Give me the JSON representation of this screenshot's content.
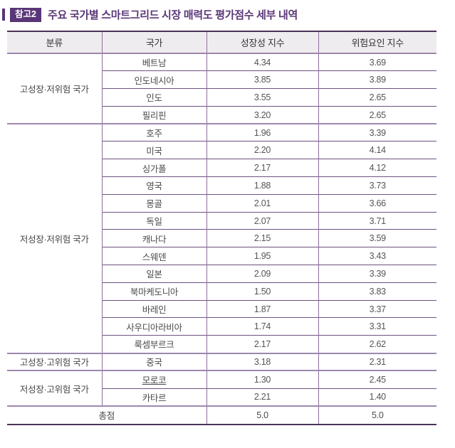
{
  "page": {
    "badge": "참고2",
    "title": "주요 국가별 스마트그리드 시장 매력도 평가점수 세부 내역"
  },
  "table": {
    "columns": [
      "분류",
      "국가",
      "성장성 지수",
      "위험요인 지수"
    ],
    "groups": [
      {
        "category": "고성장·저위험 국가",
        "rows": [
          {
            "country": "베트남",
            "growth": "4.34",
            "risk": "3.69"
          },
          {
            "country": "인도네시아",
            "growth": "3.85",
            "risk": "3.89"
          },
          {
            "country": "인도",
            "growth": "3.55",
            "risk": "2.65"
          },
          {
            "country": "필리핀",
            "growth": "3.20",
            "risk": "2.65"
          }
        ]
      },
      {
        "category": "저성장·저위험 국가",
        "rows": [
          {
            "country": "호주",
            "growth": "1.96",
            "risk": "3.39"
          },
          {
            "country": "미국",
            "growth": "2.20",
            "risk": "4.14"
          },
          {
            "country": "싱가폴",
            "growth": "2.17",
            "risk": "4.12"
          },
          {
            "country": "영국",
            "growth": "1.88",
            "risk": "3.73"
          },
          {
            "country": "몽골",
            "growth": "2.01",
            "risk": "3.66"
          },
          {
            "country": "독일",
            "growth": "2.07",
            "risk": "3.71"
          },
          {
            "country": "캐나다",
            "growth": "2.15",
            "risk": "3.59"
          },
          {
            "country": "스웨덴",
            "growth": "1.95",
            "risk": "3.43"
          },
          {
            "country": "일본",
            "growth": "2.09",
            "risk": "3.39"
          },
          {
            "country": "북마케도니아",
            "growth": "1.50",
            "risk": "3.83"
          },
          {
            "country": "바레인",
            "growth": "1.87",
            "risk": "3.37"
          },
          {
            "country": "사우디아라비아",
            "growth": "1.74",
            "risk": "3.31"
          },
          {
            "country": "룩셈부르크",
            "growth": "2.17",
            "risk": "2.62"
          }
        ]
      },
      {
        "category": "고성장·고위험 국가",
        "rows": [
          {
            "country": "중국",
            "growth": "3.18",
            "risk": "2.31"
          }
        ]
      },
      {
        "category": "저성장·고위험 국가",
        "rows": [
          {
            "country": "모로코",
            "growth": "1.30",
            "risk": "2.45",
            "underline": true
          },
          {
            "country": "카타르",
            "growth": "2.21",
            "risk": "1.40"
          }
        ]
      }
    ],
    "total": {
      "label": "총점",
      "growth": "5.0",
      "risk": "5.0"
    }
  },
  "colors": {
    "accent_purple": "#5a3678",
    "header_bg": "#efecef",
    "border_dark": "#4b3456",
    "border_group": "#9d87ae",
    "border_row": "#6e5180",
    "border_vertical": "#8b6f9d"
  }
}
